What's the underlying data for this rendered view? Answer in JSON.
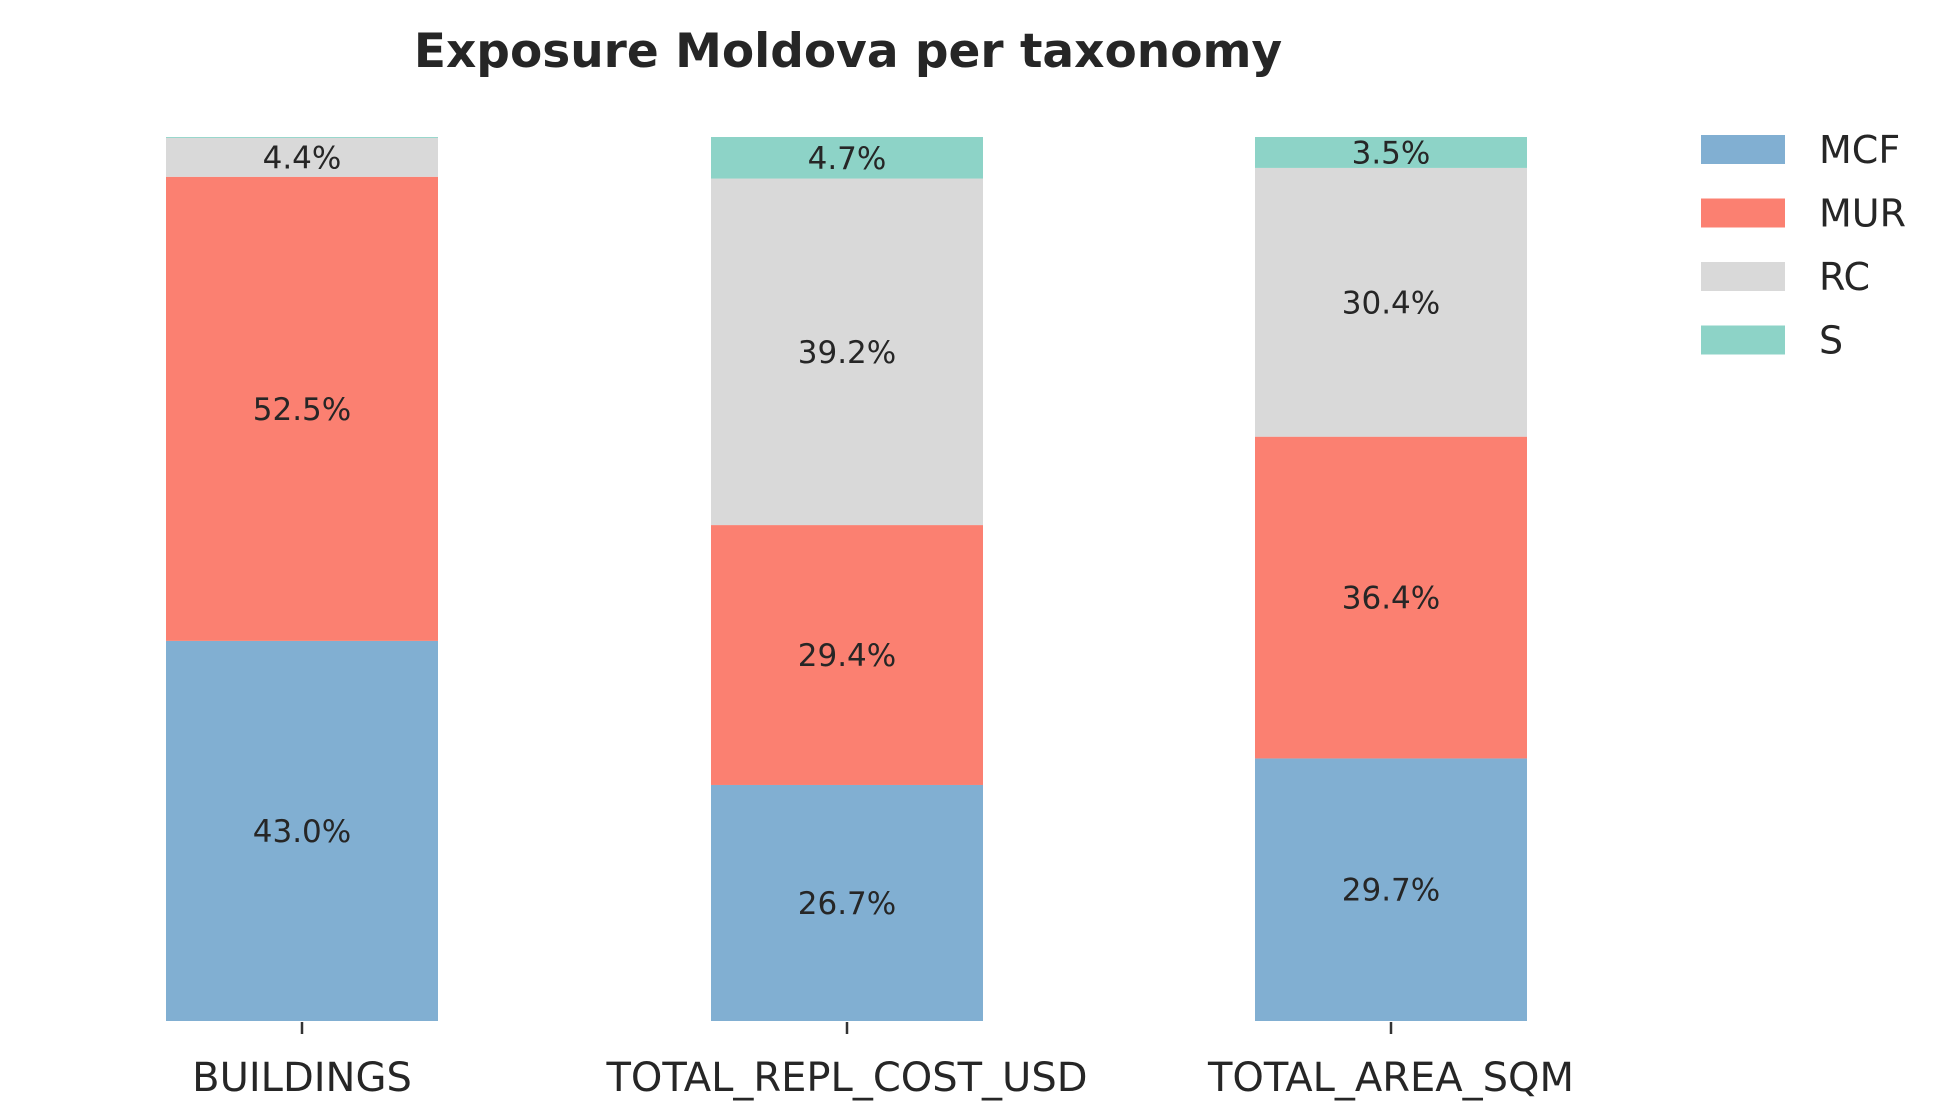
{
  "chart_data": {
    "type": "bar",
    "stacked": true,
    "title": "Exposure Moldova per taxonomy",
    "xlabel": "",
    "ylabel": "",
    "ylim": [
      0,
      100
    ],
    "grid": false,
    "legend_position": "top-right",
    "categories": [
      "BUILDINGS",
      "TOTAL_REPL_COST_USD",
      "TOTAL_AREA_SQM"
    ],
    "series": [
      {
        "name": "MCF",
        "color": "#81afd2",
        "values": [
          43.0,
          26.7,
          29.7
        ],
        "labels": [
          "43.0%",
          "26.7%",
          "29.7%"
        ]
      },
      {
        "name": "MUR",
        "color": "#fb8071",
        "values": [
          52.5,
          29.4,
          36.4
        ],
        "labels": [
          "52.5%",
          "29.4%",
          "36.4%"
        ]
      },
      {
        "name": "RC",
        "color": "#d9d9d9",
        "values": [
          4.4,
          39.2,
          30.4
        ],
        "labels": [
          "4.4%",
          "39.2%",
          "30.4%"
        ]
      },
      {
        "name": "S",
        "color": "#8dd3c7",
        "values": [
          0.1,
          4.7,
          3.5
        ],
        "labels": [
          "",
          "4.7%",
          "3.5%"
        ]
      }
    ]
  }
}
